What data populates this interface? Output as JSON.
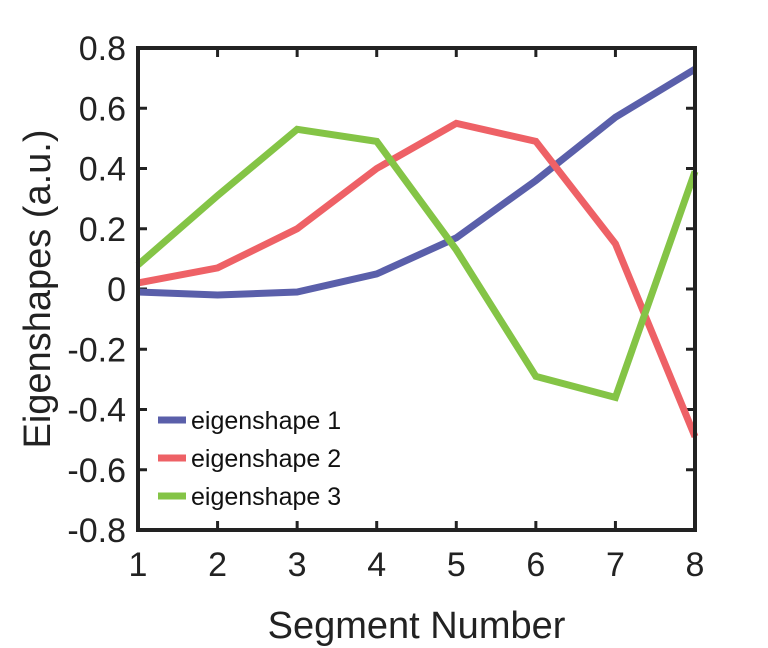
{
  "chart_data": {
    "type": "line",
    "title": "",
    "xlabel": "Segment Number",
    "ylabel": "Eigenshapes (a.u.)",
    "xlim": [
      1,
      8
    ],
    "ylim": [
      -0.8,
      0.8
    ],
    "x": [
      1,
      2,
      3,
      4,
      5,
      6,
      7,
      8
    ],
    "xticks": [
      "1",
      "2",
      "3",
      "4",
      "5",
      "6",
      "7",
      "8"
    ],
    "yticks": [
      "0.8",
      "0.6",
      "0.4",
      "0.2",
      "0",
      "-0.2",
      "-0.4",
      "-0.6",
      "-0.8"
    ],
    "grid": false,
    "legend_position": "bottom-left",
    "series": [
      {
        "name": "eigenshape 1",
        "color": "#5a5faa",
        "values": [
          -0.01,
          -0.02,
          -0.01,
          0.05,
          0.17,
          0.36,
          0.57,
          0.73
        ]
      },
      {
        "name": "eigenshape 2",
        "color": "#ee6166",
        "values": [
          0.02,
          0.07,
          0.2,
          0.4,
          0.55,
          0.49,
          0.15,
          -0.49
        ]
      },
      {
        "name": "eigenshape 3",
        "color": "#84c446",
        "values": [
          0.08,
          0.31,
          0.53,
          0.49,
          0.13,
          -0.29,
          -0.36,
          0.39
        ]
      }
    ]
  }
}
